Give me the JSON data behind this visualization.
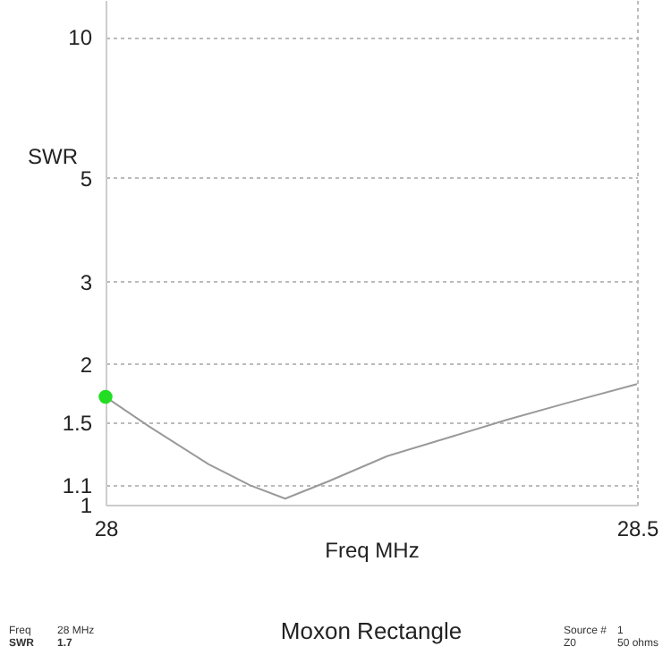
{
  "chart_data": {
    "type": "line",
    "title": "Moxon Rectangle",
    "xlabel": "Freq MHz",
    "ylabel": "SWR",
    "series": [
      {
        "type": "line",
        "color": "#9a9a9a",
        "x": [
          28.0,
          28.041,
          28.097,
          28.136,
          28.169,
          28.209,
          28.265,
          28.322,
          28.378,
          28.434,
          28.5
        ],
        "values": [
          1.7,
          1.47,
          1.22,
          1.1,
          1.03,
          1.12,
          1.27,
          1.39,
          1.52,
          1.65,
          1.81
        ]
      },
      {
        "type": "scatter",
        "color": "#22dd22",
        "x": [
          28.0
        ],
        "values": [
          1.7
        ],
        "marker": "circle"
      }
    ],
    "xlim": [
      28,
      28.5
    ],
    "xticks": [
      28,
      28.5
    ],
    "ylim": [
      1,
      12
    ],
    "yticks": [
      1,
      1.1,
      1.5,
      2,
      3,
      5,
      10
    ],
    "log": "y",
    "grid": true,
    "annotations": [
      "Freq",
      "28 MHz",
      "SWR",
      "1.7",
      "Source #",
      "1",
      "Z0",
      "50 ohms"
    ]
  }
}
